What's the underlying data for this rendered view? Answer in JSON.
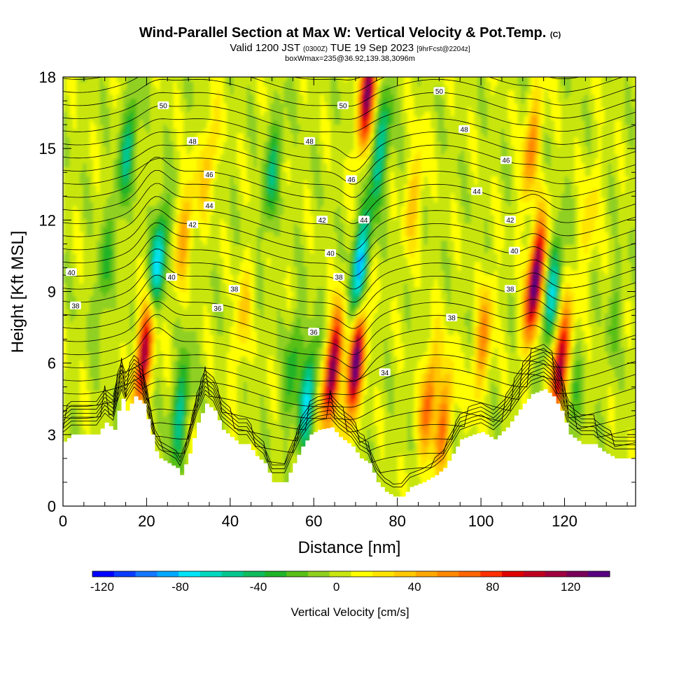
{
  "header": {
    "title_main": "Wind-Parallel Section at Max W: Vertical Velocity & Pot.Temp.",
    "title_mark": "(C)",
    "valid_prefix": "Valid 1200 JST",
    "valid_zulu": "(0300Z)",
    "valid_date": "TUE 19 Sep 2023",
    "valid_fcst": "[9hrFcst@2204z]",
    "subtitle": "boxWmax=235@36.92,139.38,3096m"
  },
  "colors": {
    "ramp": [
      "#0000ff",
      "#0a3cff",
      "#1478ff",
      "#00a8ff",
      "#00e4f8",
      "#00d8c0",
      "#00c890",
      "#10bc5c",
      "#20b428",
      "#58c018",
      "#90d020",
      "#c8e610",
      "#ffff00",
      "#ffe400",
      "#ffc800",
      "#ffa800",
      "#ff8800",
      "#ff6400",
      "#ff3000",
      "#e00000",
      "#c00020",
      "#a00040",
      "#780058",
      "#580080"
    ],
    "ground": "#ffffff",
    "contour": "#000000"
  },
  "chart_data": {
    "type": "heatmap",
    "xlabel": "Distance [nm]",
    "ylabel": "Height [Kft MSL]",
    "xlim": [
      0,
      137
    ],
    "ylim": [
      0,
      18
    ],
    "xticks": [
      0,
      20,
      40,
      60,
      80,
      100,
      120
    ],
    "yticks": [
      0,
      3,
      6,
      9,
      12,
      15,
      18
    ],
    "colorbar": {
      "label": "Vertical Velocity [cm/s]",
      "min": -125,
      "max": 140,
      "ticks": [
        -120,
        -80,
        -40,
        0,
        40,
        80,
        120
      ]
    },
    "terrain_kft": [
      [
        0,
        2.7
      ],
      [
        2,
        3.0
      ],
      [
        8,
        3.0
      ],
      [
        10,
        3.5
      ],
      [
        12,
        3.2
      ],
      [
        13,
        4.0
      ],
      [
        14,
        4.5
      ],
      [
        15,
        4.0
      ],
      [
        17,
        4.6
      ],
      [
        19,
        4.3
      ],
      [
        21,
        3.0
      ],
      [
        22,
        2.3
      ],
      [
        23,
        2.0
      ],
      [
        25,
        1.8
      ],
      [
        27,
        1.6
      ],
      [
        28,
        1.3
      ],
      [
        30,
        2.2
      ],
      [
        32,
        3.5
      ],
      [
        34,
        4.3
      ],
      [
        36,
        4.0
      ],
      [
        38,
        3.2
      ],
      [
        40,
        2.9
      ],
      [
        42,
        2.6
      ],
      [
        44,
        2.6
      ],
      [
        46,
        2.1
      ],
      [
        48,
        1.8
      ],
      [
        50,
        1.0
      ],
      [
        53,
        1.0
      ],
      [
        55,
        1.8
      ],
      [
        57,
        2.5
      ],
      [
        59,
        3.0
      ],
      [
        61,
        3.2
      ],
      [
        64,
        3.3
      ],
      [
        66,
        2.9
      ],
      [
        69,
        2.5
      ],
      [
        71,
        2.0
      ],
      [
        73,
        1.8
      ],
      [
        75,
        1.0
      ],
      [
        77,
        0.6
      ],
      [
        79,
        0.4
      ],
      [
        81,
        0.4
      ],
      [
        83,
        0.8
      ],
      [
        86,
        1.0
      ],
      [
        89,
        1.3
      ],
      [
        91,
        1.6
      ],
      [
        93,
        2.2
      ],
      [
        95,
        2.8
      ],
      [
        98,
        3.0
      ],
      [
        100,
        3.1
      ],
      [
        103,
        2.8
      ],
      [
        106,
        3.3
      ],
      [
        108,
        3.8
      ],
      [
        110,
        4.3
      ],
      [
        112,
        4.7
      ],
      [
        115,
        4.9
      ],
      [
        117,
        4.6
      ],
      [
        119,
        4.0
      ],
      [
        121,
        3.0
      ],
      [
        124,
        2.6
      ],
      [
        127,
        2.6
      ],
      [
        129,
        2.3
      ],
      [
        132,
        2.0
      ],
      [
        137,
        2.0
      ]
    ],
    "w_features": [
      {
        "x": 19.5,
        "z": 6.5,
        "w": 120
      },
      {
        "x": 22.5,
        "z": 10.0,
        "w": -85
      },
      {
        "x": 29,
        "z": 11.5,
        "w": 45
      },
      {
        "x": 15.5,
        "z": 15.0,
        "w": -50
      },
      {
        "x": 35,
        "z": 14.5,
        "w": 35
      },
      {
        "x": 10,
        "z": 10.0,
        "w": -30
      },
      {
        "x": 28,
        "z": 4.0,
        "w": -55
      },
      {
        "x": 43,
        "z": 8.0,
        "w": 30
      },
      {
        "x": 50,
        "z": 14.0,
        "w": -45
      },
      {
        "x": 55,
        "z": 6.0,
        "w": -35
      },
      {
        "x": 58.5,
        "z": 4.5,
        "w": -70
      },
      {
        "x": 64.5,
        "z": 5.8,
        "w": 125
      },
      {
        "x": 70,
        "z": 6.0,
        "w": 130
      },
      {
        "x": 71,
        "z": 10.0,
        "w": -90
      },
      {
        "x": 73,
        "z": 17.5,
        "w": 120
      },
      {
        "x": 76,
        "z": 15.0,
        "w": -60
      },
      {
        "x": 84,
        "z": 13.0,
        "w": 35
      },
      {
        "x": 87.5,
        "z": 4.5,
        "w": 65
      },
      {
        "x": 91,
        "z": 3.5,
        "w": 60
      },
      {
        "x": 100.5,
        "z": 7.0,
        "w": 55
      },
      {
        "x": 113,
        "z": 9.5,
        "w": 140
      },
      {
        "x": 119,
        "z": 6.0,
        "w": 110
      },
      {
        "x": 117,
        "z": 9.0,
        "w": -65
      },
      {
        "x": 112,
        "z": 15.0,
        "w": 55
      },
      {
        "x": 126,
        "z": 12.0,
        "w": 25
      },
      {
        "x": 132,
        "z": 8.0,
        "w": -20
      },
      {
        "x": 122,
        "z": 4.0,
        "w": -25
      }
    ],
    "theta_labels": [
      {
        "text": "50",
        "x": 24,
        "z": 16.8
      },
      {
        "text": "50",
        "x": 67,
        "z": 16.8
      },
      {
        "text": "50",
        "x": 90,
        "z": 17.4
      },
      {
        "text": "48",
        "x": 31,
        "z": 15.3
      },
      {
        "text": "48",
        "x": 59,
        "z": 15.3
      },
      {
        "text": "48",
        "x": 96,
        "z": 15.8
      },
      {
        "text": "46",
        "x": 35,
        "z": 13.9
      },
      {
        "text": "46",
        "x": 69,
        "z": 13.7
      },
      {
        "text": "46",
        "x": 106,
        "z": 14.5
      },
      {
        "text": "44",
        "x": 35,
        "z": 12.6
      },
      {
        "text": "44",
        "x": 72,
        "z": 12.0
      },
      {
        "text": "44",
        "x": 99,
        "z": 13.2
      },
      {
        "text": "42",
        "x": 31,
        "z": 11.8
      },
      {
        "text": "42",
        "x": 62,
        "z": 12.0
      },
      {
        "text": "42",
        "x": 107,
        "z": 12.0
      },
      {
        "text": "40",
        "x": 2,
        "z": 9.8
      },
      {
        "text": "40",
        "x": 26,
        "z": 9.6
      },
      {
        "text": "40",
        "x": 64,
        "z": 10.6
      },
      {
        "text": "40",
        "x": 108,
        "z": 10.7
      },
      {
        "text": "38",
        "x": 3,
        "z": 8.4
      },
      {
        "text": "38",
        "x": 41,
        "z": 9.1
      },
      {
        "text": "38",
        "x": 66,
        "z": 9.6
      },
      {
        "text": "38",
        "x": 107,
        "z": 9.1
      },
      {
        "text": "38",
        "x": 93,
        "z": 7.9
      },
      {
        "text": "36",
        "x": 37,
        "z": 8.3
      },
      {
        "text": "36",
        "x": 60,
        "z": 7.3
      },
      {
        "text": "34",
        "x": 77,
        "z": 5.6
      }
    ]
  }
}
